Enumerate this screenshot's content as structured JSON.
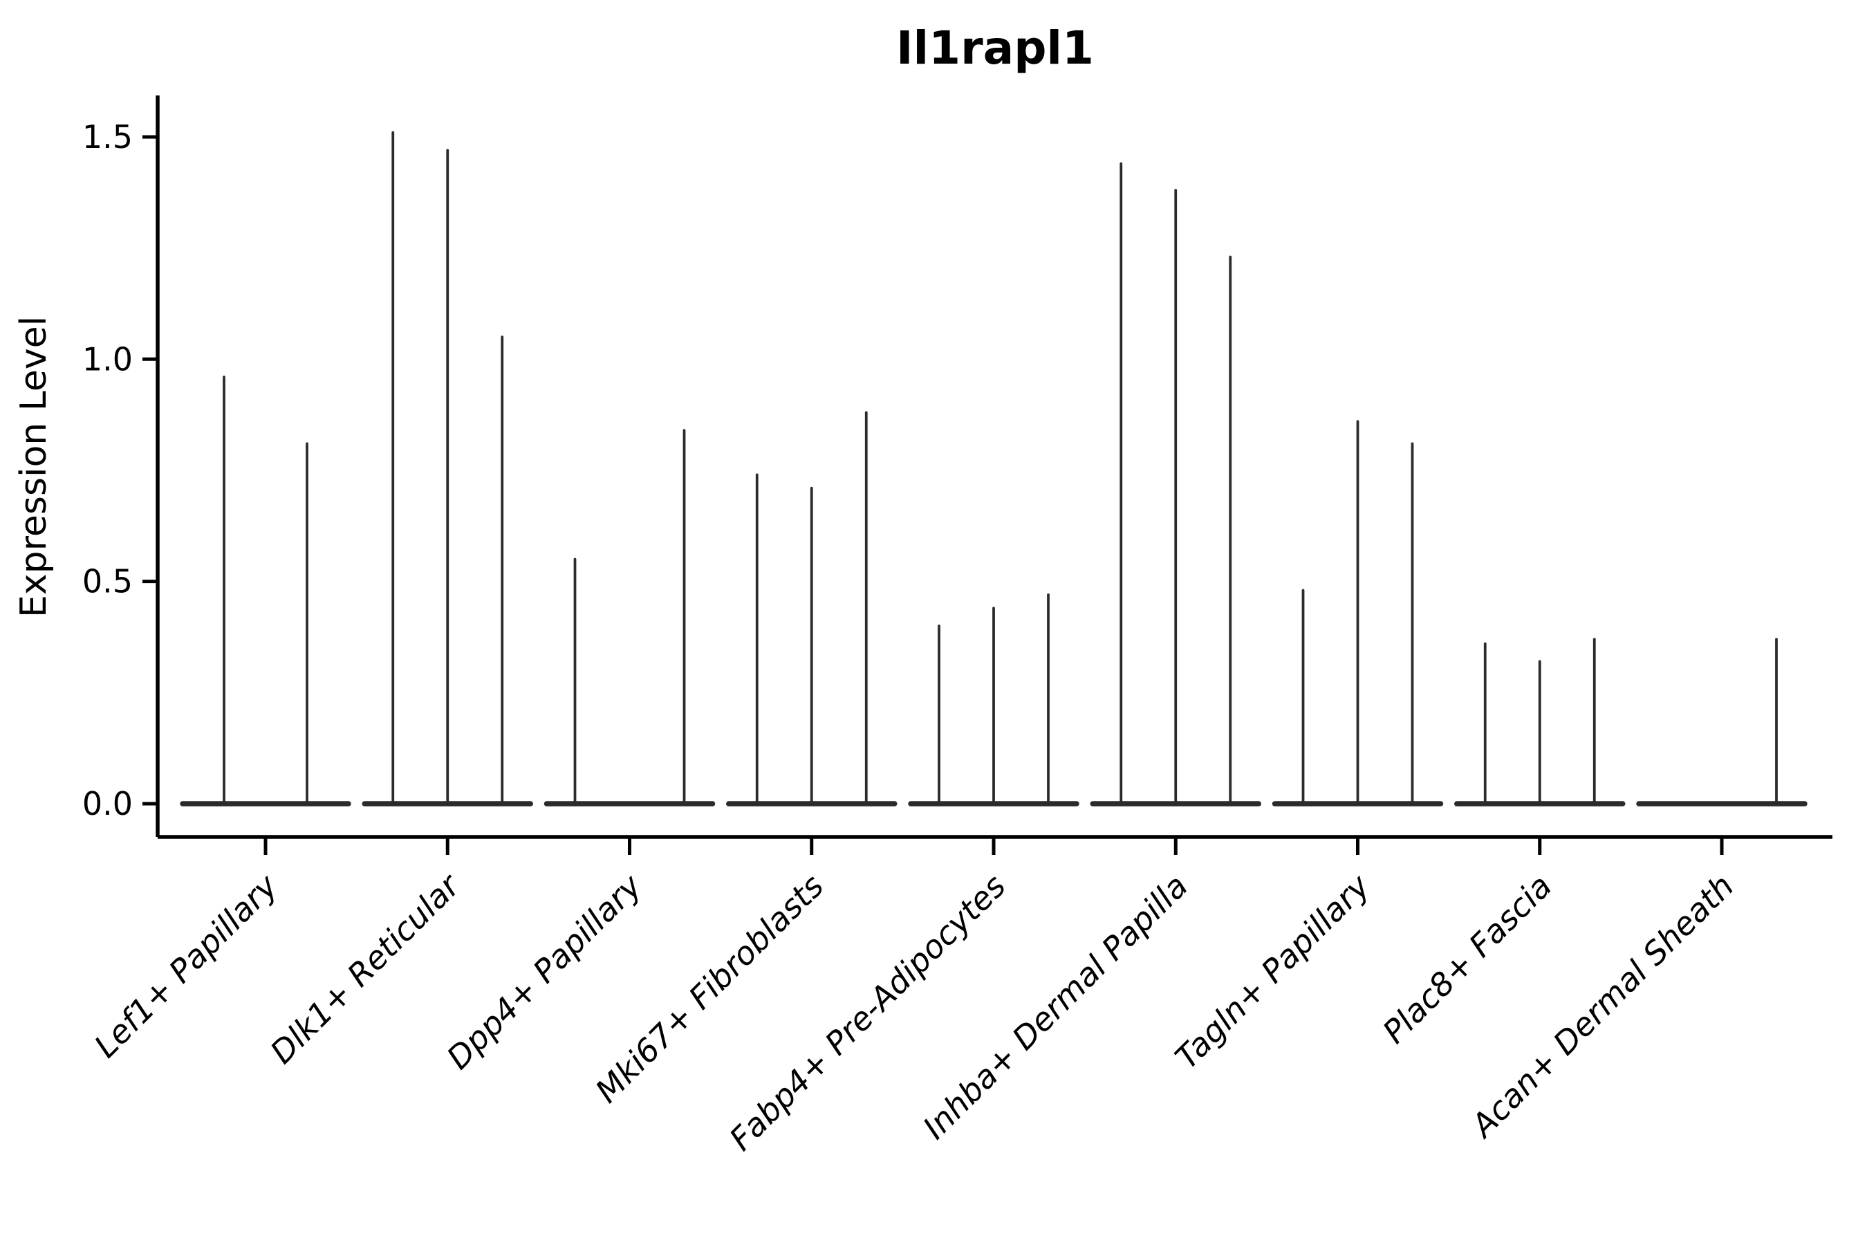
{
  "chart_data": {
    "type": "violin",
    "title": "Il1rapl1",
    "xlabel": "",
    "ylabel": "Expression Level",
    "yticks": [
      "0.0",
      "0.5",
      "1.0",
      "1.5"
    ],
    "ylim": [
      -0.07,
      1.59
    ],
    "grid": false,
    "legend_position": "none",
    "description": "Collapsed (needle-like) violin plot of Il1rapl1 expression per cell type; each category contains up to 3 thin violins whose spikes mark the maximum expression, with flat bases at 0.",
    "categories": [
      "Lef1+ Papillary",
      "Dlk1+ Reticular",
      "Dpp4+ Papillary",
      "Mki67+ Fibroblasts",
      "Fabp4+ Pre-Adipocytes",
      "Inhba+ Dermal Papilla",
      "Tagln+ Papillary",
      "Plac8+ Fascia",
      "Acan+ Dermal Sheath"
    ],
    "groups": [
      {
        "category": "Lef1+ Papillary",
        "violin_peaks": [
          0.96,
          0.81
        ]
      },
      {
        "category": "Dlk1+ Reticular",
        "violin_peaks": [
          1.51,
          1.47,
          1.05
        ]
      },
      {
        "category": "Dpp4+ Papillary",
        "violin_peaks": [
          0.55,
          0,
          0.84
        ]
      },
      {
        "category": "Mki67+ Fibroblasts",
        "violin_peaks": [
          0.74,
          0.71,
          0.88
        ]
      },
      {
        "category": "Fabp4+ Pre-Adipocytes",
        "violin_peaks": [
          0.4,
          0.44,
          0.47
        ]
      },
      {
        "category": "Inhba+ Dermal Papilla",
        "violin_peaks": [
          1.44,
          1.38,
          1.23
        ]
      },
      {
        "category": "Tagln+ Papillary",
        "violin_peaks": [
          0.48,
          0.86,
          0.81
        ]
      },
      {
        "category": "Plac8+ Fascia",
        "violin_peaks": [
          0.36,
          0.32,
          0.37
        ]
      },
      {
        "category": "Acan+ Dermal Sheath",
        "violin_peaks": [
          0,
          0,
          0.37
        ]
      }
    ],
    "colors": {
      "violin": "#2b2b2b",
      "axis": "#000000",
      "text": "#000000",
      "background": "#ffffff"
    }
  }
}
